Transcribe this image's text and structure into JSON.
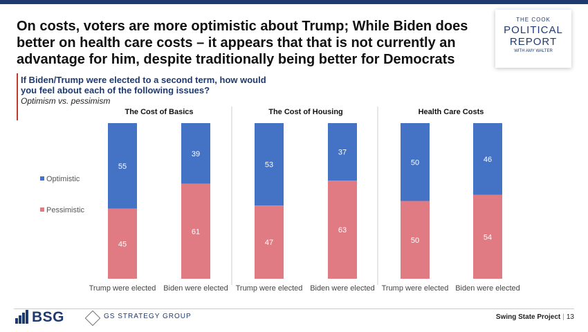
{
  "title": "On costs, voters are more optimistic about Trump; While Biden does better on health care costs – it appears that that is not currently an advantage for him, despite traditionally being better for Democrats",
  "question": "If Biden/Trump were elected to a second term, how would you feel about each of the following issues?",
  "subquestion": "Optimism vs. pessimism",
  "logo": {
    "line1": "THE COOK",
    "line2": "POLITICAL",
    "line3": "REPORT",
    "line4": "WITH AMY WALTER"
  },
  "footer": {
    "bsg": "BSG",
    "gs": "GS STRATEGY GROUP",
    "project": "Swing State Project",
    "page": "13"
  },
  "colors": {
    "optimistic": "#4472c4",
    "pessimistic": "#e07b83",
    "navy": "#1f3a6e"
  },
  "chart_data": {
    "type": "bar",
    "stacked": true,
    "legend_position": "left",
    "groups": [
      {
        "title": "The Cost of Basics",
        "categories": [
          "Trump were elected",
          "Biden were elected"
        ],
        "series": [
          {
            "name": "Optimistic",
            "values": [
              55,
              39
            ]
          },
          {
            "name": "Pessimistic",
            "values": [
              45,
              61
            ]
          }
        ]
      },
      {
        "title": "The Cost of Housing",
        "categories": [
          "Trump were elected",
          "Biden were elected"
        ],
        "series": [
          {
            "name": "Optimistic",
            "values": [
              53,
              37
            ]
          },
          {
            "name": "Pessimistic",
            "values": [
              47,
              63
            ]
          }
        ]
      },
      {
        "title": "Health Care Costs",
        "categories": [
          "Trump were elected",
          "Biden were elected"
        ],
        "series": [
          {
            "name": "Optimistic",
            "values": [
              50,
              46
            ]
          },
          {
            "name": "Pessimistic",
            "values": [
              50,
              54
            ]
          }
        ]
      }
    ],
    "ylim": [
      0,
      100
    ]
  }
}
